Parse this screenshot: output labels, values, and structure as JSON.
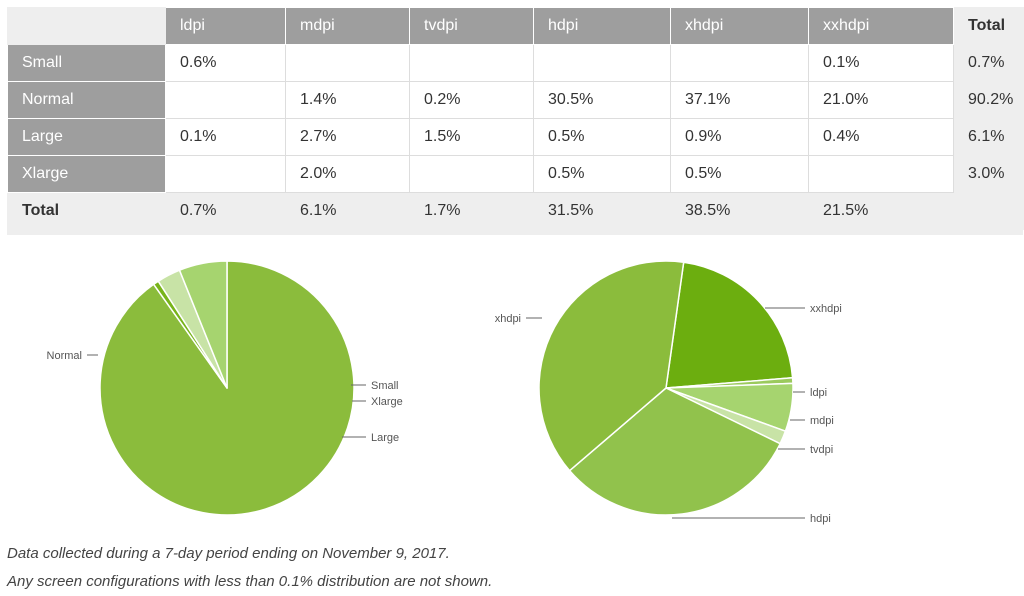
{
  "table": {
    "columns": [
      "ldpi",
      "mdpi",
      "tvdpi",
      "hdpi",
      "xhdpi",
      "xxhdpi"
    ],
    "total_header": "Total",
    "rows": [
      {
        "label": "Small",
        "cells": [
          "0.6%",
          "",
          "",
          "",
          "",
          "0.1%"
        ],
        "total": "0.7%"
      },
      {
        "label": "Normal",
        "cells": [
          "",
          "1.4%",
          "0.2%",
          "30.5%",
          "37.1%",
          "21.0%"
        ],
        "total": "90.2%"
      },
      {
        "label": "Large",
        "cells": [
          "0.1%",
          "2.7%",
          "1.5%",
          "0.5%",
          "0.9%",
          "0.4%"
        ],
        "total": "6.1%"
      },
      {
        "label": "Xlarge",
        "cells": [
          "",
          "2.0%",
          "",
          "0.5%",
          "0.5%",
          ""
        ],
        "total": "3.0%"
      }
    ],
    "total_row": {
      "label": "Total",
      "cells": [
        "0.7%",
        "6.1%",
        "1.7%",
        "31.5%",
        "38.5%",
        "21.5%"
      ]
    }
  },
  "colors": {
    "header_bg": "#9e9e9e",
    "table_bg": "#eeeeee",
    "pie_main": "#8bbc3c",
    "pie_slices": {
      "Small": "#78b41a",
      "Xlarge": "#c8e3a6",
      "Large": "#a6d46f",
      "xxhdpi": "#6cae0f",
      "ldpi": "#9bca5d",
      "mdpi": "#a6d46f",
      "tvdpi": "#c8e3a6",
      "hdpi": "#91c24c",
      "xhdpi": "#8bbc3c"
    }
  },
  "chart_data": [
    {
      "type": "pie",
      "title": "",
      "labels": [
        "Normal",
        "Small",
        "Xlarge",
        "Large"
      ],
      "values": [
        90.2,
        0.7,
        3.0,
        6.1
      ]
    },
    {
      "type": "pie",
      "title": "",
      "labels": [
        "xxhdpi",
        "ldpi",
        "mdpi",
        "tvdpi",
        "hdpi",
        "xhdpi"
      ],
      "values": [
        21.5,
        0.7,
        6.1,
        1.7,
        31.5,
        38.5
      ]
    }
  ],
  "notes": [
    "Data collected during a 7-day period ending on November 9, 2017.",
    "Any screen configurations with less than 0.1% distribution are not shown."
  ]
}
